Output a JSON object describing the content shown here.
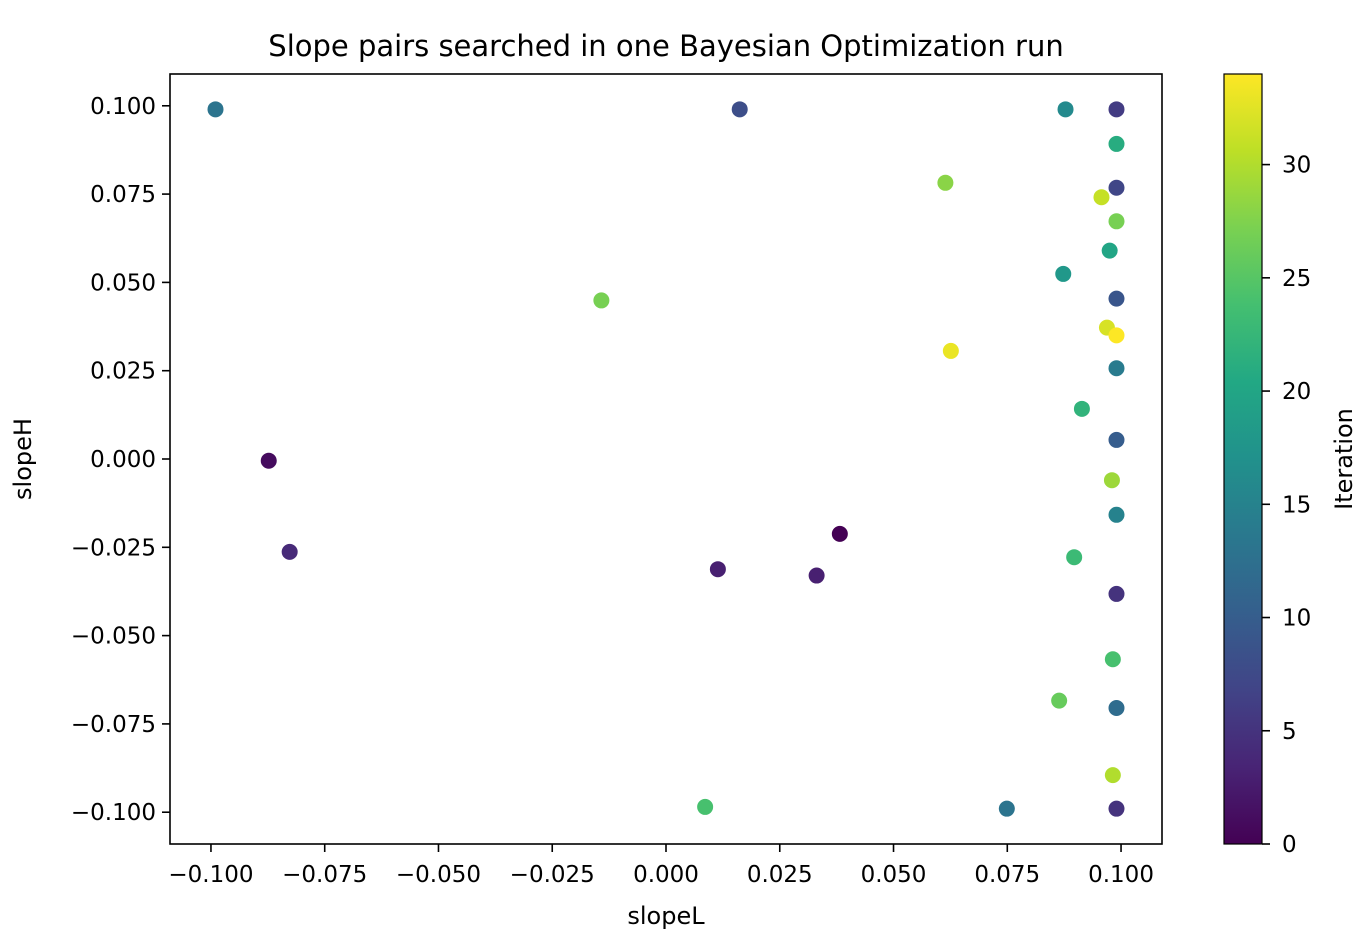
{
  "chart_data": {
    "type": "scatter",
    "title": "Slope pairs searched in one Bayesian Optimization run",
    "xlabel": "slopeL",
    "ylabel": "slopeH",
    "xlim": [
      -0.109,
      0.109
    ],
    "ylim": [
      -0.109,
      0.109
    ],
    "x_ticks": [
      "−0.100",
      "−0.075",
      "−0.050",
      "−0.025",
      "0.000",
      "0.025",
      "0.050",
      "0.075",
      "0.100"
    ],
    "y_ticks": [
      "−0.100",
      "−0.075",
      "−0.050",
      "−0.025",
      "0.000",
      "0.025",
      "0.050",
      "0.075",
      "0.100"
    ],
    "grid": false,
    "colormap": "viridis",
    "colorbar": {
      "label": "Iteration",
      "min": 0,
      "max": 34,
      "ticks": [
        "0",
        "5",
        "10",
        "15",
        "20",
        "25",
        "30"
      ]
    },
    "points": [
      {
        "x": 0.0382,
        "y": -0.0212,
        "iteration": 0
      },
      {
        "x": -0.0873,
        "y": -0.0005,
        "iteration": 1
      },
      {
        "x": 0.0331,
        "y": -0.033,
        "iteration": 3
      },
      {
        "x": 0.0114,
        "y": -0.0312,
        "iteration": 3
      },
      {
        "x": -0.0827,
        "y": -0.0263,
        "iteration": 4
      },
      {
        "x": 0.099,
        "y": -0.0382,
        "iteration": 5
      },
      {
        "x": 0.099,
        "y": -0.099,
        "iteration": 5
      },
      {
        "x": 0.099,
        "y": 0.099,
        "iteration": 6
      },
      {
        "x": 0.099,
        "y": 0.0768,
        "iteration": 7
      },
      {
        "x": 0.0162,
        "y": 0.099,
        "iteration": 8
      },
      {
        "x": 0.099,
        "y": 0.0454,
        "iteration": 9
      },
      {
        "x": 0.099,
        "y": 0.0054,
        "iteration": 10
      },
      {
        "x": 0.099,
        "y": -0.0705,
        "iteration": 12
      },
      {
        "x": -0.099,
        "y": 0.099,
        "iteration": 13
      },
      {
        "x": 0.0749,
        "y": -0.099,
        "iteration": 13
      },
      {
        "x": 0.099,
        "y": 0.0257,
        "iteration": 14
      },
      {
        "x": 0.099,
        "y": -0.0158,
        "iteration": 15
      },
      {
        "x": 0.0878,
        "y": 0.099,
        "iteration": 16
      },
      {
        "x": 0.0873,
        "y": 0.0524,
        "iteration": 18
      },
      {
        "x": 0.0975,
        "y": 0.059,
        "iteration": 20
      },
      {
        "x": 0.099,
        "y": 0.0892,
        "iteration": 21
      },
      {
        "x": 0.0914,
        "y": 0.0142,
        "iteration": 22
      },
      {
        "x": 0.0897,
        "y": -0.0278,
        "iteration": 23
      },
      {
        "x": 0.0086,
        "y": -0.0985,
        "iteration": 24
      },
      {
        "x": 0.0982,
        "y": -0.0567,
        "iteration": 24
      },
      {
        "x": 0.0864,
        "y": -0.0684,
        "iteration": 26
      },
      {
        "x": -0.0142,
        "y": 0.0449,
        "iteration": 27
      },
      {
        "x": 0.099,
        "y": 0.0673,
        "iteration": 27
      },
      {
        "x": 0.0614,
        "y": 0.0782,
        "iteration": 28
      },
      {
        "x": 0.098,
        "y": -0.006,
        "iteration": 29
      },
      {
        "x": 0.0982,
        "y": -0.0895,
        "iteration": 30
      },
      {
        "x": 0.0957,
        "y": 0.0741,
        "iteration": 31
      },
      {
        "x": 0.0969,
        "y": 0.0372,
        "iteration": 32
      },
      {
        "x": 0.0626,
        "y": 0.0306,
        "iteration": 33
      },
      {
        "x": 0.099,
        "y": 0.035,
        "iteration": 34
      }
    ]
  }
}
